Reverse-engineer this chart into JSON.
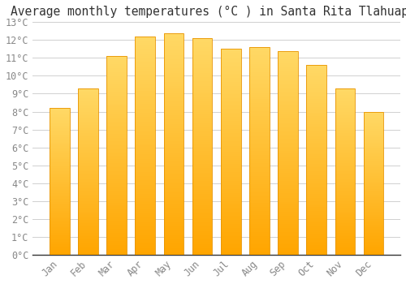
{
  "title": "Average monthly temperatures (°C ) in Santa Rita Tlahuapan",
  "months": [
    "Jan",
    "Feb",
    "Mar",
    "Apr",
    "May",
    "Jun",
    "Jul",
    "Aug",
    "Sep",
    "Oct",
    "Nov",
    "Dec"
  ],
  "values": [
    8.2,
    9.3,
    11.1,
    12.2,
    12.4,
    12.1,
    11.5,
    11.6,
    11.4,
    10.6,
    9.3,
    8.0
  ],
  "bar_color_bottom": "#FFA500",
  "bar_color_top": "#FFD966",
  "bar_edge_color": "#E89400",
  "ylim": [
    0,
    13
  ],
  "ytick_step": 1,
  "background_color": "#ffffff",
  "grid_color": "#d0d0d0",
  "title_fontsize": 10.5,
  "tick_fontsize": 8.5,
  "font_family": "monospace",
  "tick_color": "#888888",
  "bottom_line_color": "#333333"
}
